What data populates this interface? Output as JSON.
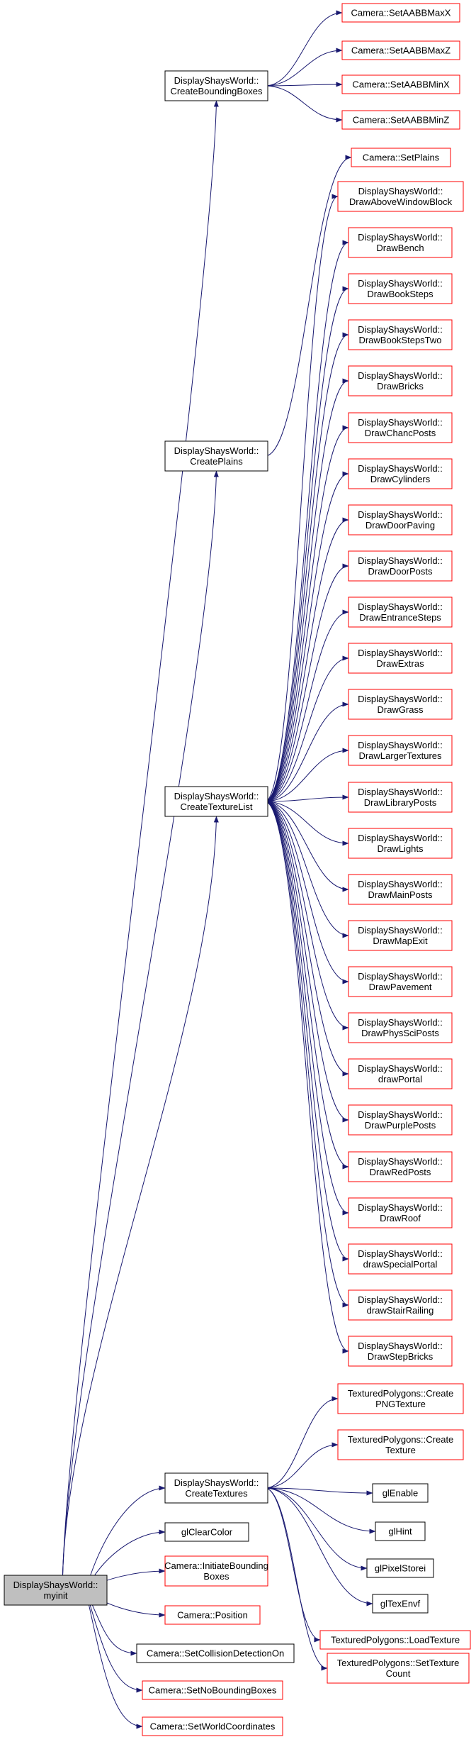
{
  "colors": {
    "edge": "#191970",
    "root_fill": "#bfbfbf",
    "box_black": "#000000",
    "box_red": "#ff0000",
    "background": "#ffffff"
  },
  "nodes": {
    "myinit": [
      "DisplayShaysWorld::",
      "myinit"
    ],
    "create_bounding_boxes": [
      "DisplayShaysWorld::",
      "CreateBoundingBoxes"
    ],
    "create_plains": [
      "DisplayShaysWorld::",
      "CreatePlains"
    ],
    "create_texture_list": [
      "DisplayShaysWorld::",
      "CreateTextureList"
    ],
    "create_textures": [
      "DisplayShaysWorld::",
      "CreateTextures"
    ],
    "gl_clear_color": [
      "glClearColor"
    ],
    "initiate_bounding_boxes": [
      "Camera::InitiateBounding",
      "Boxes"
    ],
    "position": [
      "Camera::Position"
    ],
    "set_collision_detection_on": [
      "Camera::SetCollisionDetectionOn"
    ],
    "set_no_bounding_boxes": [
      "Camera::SetNoBoundingBoxes"
    ],
    "set_world_coordinates": [
      "Camera::SetWorldCoordinates"
    ],
    "set_aabb_max_x": [
      "Camera::SetAABBMaxX"
    ],
    "set_aabb_max_z": [
      "Camera::SetAABBMaxZ"
    ],
    "set_aabb_min_x": [
      "Camera::SetAABBMinX"
    ],
    "set_aabb_min_z": [
      "Camera::SetAABBMinZ"
    ],
    "set_plains": [
      "Camera::SetPlains"
    ],
    "draw_above_window_block": [
      "DisplayShaysWorld::",
      "DrawAboveWindowBlock"
    ],
    "draw_bench": [
      "DisplayShaysWorld::",
      "DrawBench"
    ],
    "draw_book_steps": [
      "DisplayShaysWorld::",
      "DrawBookSteps"
    ],
    "draw_book_steps_two": [
      "DisplayShaysWorld::",
      "DrawBookStepsTwo"
    ],
    "draw_bricks": [
      "DisplayShaysWorld::",
      "DrawBricks"
    ],
    "draw_chanc_posts": [
      "DisplayShaysWorld::",
      "DrawChancPosts"
    ],
    "draw_cylinders": [
      "DisplayShaysWorld::",
      "DrawCylinders"
    ],
    "draw_door_paving": [
      "DisplayShaysWorld::",
      "DrawDoorPaving"
    ],
    "draw_door_posts": [
      "DisplayShaysWorld::",
      "DrawDoorPosts"
    ],
    "draw_entrance_steps": [
      "DisplayShaysWorld::",
      "DrawEntranceSteps"
    ],
    "draw_extras": [
      "DisplayShaysWorld::",
      "DrawExtras"
    ],
    "draw_grass": [
      "DisplayShaysWorld::",
      "DrawGrass"
    ],
    "draw_larger_textures": [
      "DisplayShaysWorld::",
      "DrawLargerTextures"
    ],
    "draw_library_posts": [
      "DisplayShaysWorld::",
      "DrawLibraryPosts"
    ],
    "draw_lights": [
      "DisplayShaysWorld::",
      "DrawLights"
    ],
    "draw_main_posts": [
      "DisplayShaysWorld::",
      "DrawMainPosts"
    ],
    "draw_map_exit": [
      "DisplayShaysWorld::",
      "DrawMapExit"
    ],
    "draw_pavement": [
      "DisplayShaysWorld::",
      "DrawPavement"
    ],
    "draw_phys_sci_posts": [
      "DisplayShaysWorld::",
      "DrawPhysSciPosts"
    ],
    "draw_portal": [
      "DisplayShaysWorld::",
      "drawPortal"
    ],
    "draw_purple_posts": [
      "DisplayShaysWorld::",
      "DrawPurplePosts"
    ],
    "draw_red_posts": [
      "DisplayShaysWorld::",
      "DrawRedPosts"
    ],
    "draw_roof": [
      "DisplayShaysWorld::",
      "DrawRoof"
    ],
    "draw_special_portal": [
      "DisplayShaysWorld::",
      "drawSpecialPortal"
    ],
    "draw_stair_railing": [
      "DisplayShaysWorld::",
      "drawStairRailing"
    ],
    "draw_step_bricks": [
      "DisplayShaysWorld::",
      "DrawStepBricks"
    ],
    "create_png_texture": [
      "TexturedPolygons::Create",
      "PNGTexture"
    ],
    "create_texture": [
      "TexturedPolygons::Create",
      "Texture"
    ],
    "gl_enable": [
      "glEnable"
    ],
    "gl_hint": [
      "glHint"
    ],
    "gl_pixel_storei": [
      "glPixelStorei"
    ],
    "gl_tex_envf": [
      "glTexEnvf"
    ],
    "load_texture": [
      "TexturedPolygons::LoadTexture"
    ],
    "set_texture_count": [
      "TexturedPolygons::SetTexture",
      "Count"
    ]
  },
  "edges": [
    [
      "myinit",
      "create_bounding_boxes"
    ],
    [
      "myinit",
      "create_plains"
    ],
    [
      "myinit",
      "create_texture_list"
    ],
    [
      "myinit",
      "create_textures"
    ],
    [
      "myinit",
      "gl_clear_color"
    ],
    [
      "myinit",
      "initiate_bounding_boxes"
    ],
    [
      "myinit",
      "position"
    ],
    [
      "myinit",
      "set_collision_detection_on"
    ],
    [
      "myinit",
      "set_no_bounding_boxes"
    ],
    [
      "myinit",
      "set_world_coordinates"
    ],
    [
      "create_bounding_boxes",
      "set_aabb_max_x"
    ],
    [
      "create_bounding_boxes",
      "set_aabb_max_z"
    ],
    [
      "create_bounding_boxes",
      "set_aabb_min_x"
    ],
    [
      "create_bounding_boxes",
      "set_aabb_min_z"
    ],
    [
      "create_plains",
      "set_plains"
    ],
    [
      "create_texture_list",
      "draw_above_window_block"
    ],
    [
      "create_texture_list",
      "draw_bench"
    ],
    [
      "create_texture_list",
      "draw_book_steps"
    ],
    [
      "create_texture_list",
      "draw_book_steps_two"
    ],
    [
      "create_texture_list",
      "draw_bricks"
    ],
    [
      "create_texture_list",
      "draw_chanc_posts"
    ],
    [
      "create_texture_list",
      "draw_cylinders"
    ],
    [
      "create_texture_list",
      "draw_door_paving"
    ],
    [
      "create_texture_list",
      "draw_door_posts"
    ],
    [
      "create_texture_list",
      "draw_entrance_steps"
    ],
    [
      "create_texture_list",
      "draw_extras"
    ],
    [
      "create_texture_list",
      "draw_grass"
    ],
    [
      "create_texture_list",
      "draw_larger_textures"
    ],
    [
      "create_texture_list",
      "draw_library_posts"
    ],
    [
      "create_texture_list",
      "draw_lights"
    ],
    [
      "create_texture_list",
      "draw_main_posts"
    ],
    [
      "create_texture_list",
      "draw_map_exit"
    ],
    [
      "create_texture_list",
      "draw_pavement"
    ],
    [
      "create_texture_list",
      "draw_phys_sci_posts"
    ],
    [
      "create_texture_list",
      "draw_portal"
    ],
    [
      "create_texture_list",
      "draw_purple_posts"
    ],
    [
      "create_texture_list",
      "draw_red_posts"
    ],
    [
      "create_texture_list",
      "draw_roof"
    ],
    [
      "create_texture_list",
      "draw_special_portal"
    ],
    [
      "create_texture_list",
      "draw_stair_railing"
    ],
    [
      "create_texture_list",
      "draw_step_bricks"
    ],
    [
      "create_textures",
      "create_png_texture"
    ],
    [
      "create_textures",
      "create_texture"
    ],
    [
      "create_textures",
      "gl_enable"
    ],
    [
      "create_textures",
      "gl_hint"
    ],
    [
      "create_textures",
      "gl_pixel_storei"
    ],
    [
      "create_textures",
      "gl_tex_envf"
    ],
    [
      "create_textures",
      "load_texture"
    ],
    [
      "create_textures",
      "set_texture_count"
    ]
  ]
}
